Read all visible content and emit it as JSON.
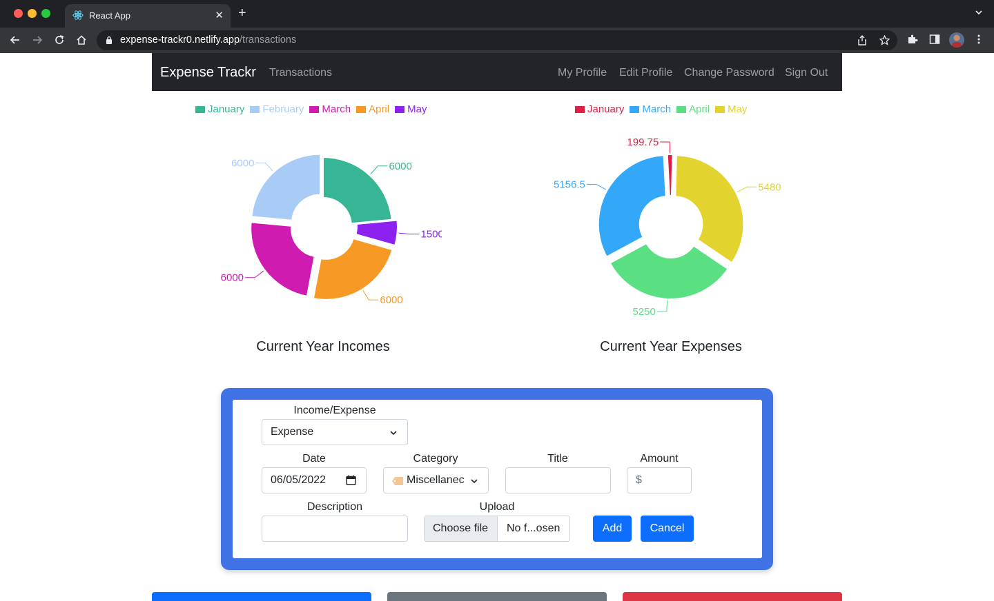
{
  "browser": {
    "tab_title": "React App",
    "url_host": "expense-trackr0.netlify.app",
    "url_path": "/transactions"
  },
  "navbar": {
    "brand": "Expense Trackr",
    "transactions_link": "Transactions",
    "my_profile_link": "My Profile",
    "edit_profile_link": "Edit Profile",
    "change_password_link": "Change Password",
    "sign_out_link": "Sign Out"
  },
  "chart_data": [
    {
      "type": "pie",
      "title": "Current Year Incomes",
      "categories": [
        "January",
        "February",
        "March",
        "April",
        "May"
      ],
      "values": [
        6000,
        6000,
        6000,
        6000,
        1500
      ],
      "value_labels": [
        "6000",
        "6000",
        "6000",
        "6000",
        "1500"
      ],
      "colors": [
        "#36b694",
        "#a9ccf7",
        "#d01bb0",
        "#f79a25",
        "#8c21f0"
      ],
      "donut": true,
      "legend_position": "top"
    },
    {
      "type": "pie",
      "title": "Current Year Expenses",
      "categories": [
        "January",
        "March",
        "April",
        "May"
      ],
      "values": [
        199.75,
        5156.5,
        5250,
        5480
      ],
      "value_labels": [
        "199.75",
        "5156.5",
        "5250",
        "5480"
      ],
      "colors": [
        "#dc1f45",
        "#34a8f8",
        "#5ae083",
        "#e2d32e"
      ],
      "donut": true,
      "legend_position": "top"
    }
  ],
  "form": {
    "type_label": "Income/Expense",
    "type_value": "Expense",
    "date_label": "Date",
    "date_value": "06/05/2022",
    "category_label": "Category",
    "category_value": "Miscellanec",
    "title_label": "Title",
    "title_value": "",
    "amount_label": "Amount",
    "amount_prefix": "$",
    "description_label": "Description",
    "description_value": "",
    "upload_label": "Upload",
    "choose_file": "Choose file",
    "no_file": "No f...osen",
    "add_button": "Add",
    "cancel_button": "Cancel"
  },
  "colors": {
    "card_border": "#3f73e5",
    "primary": "#0d6efd",
    "navbar_bg": "#212529",
    "bottom_blue": "#0d6efd",
    "bottom_gray": "#6c757d",
    "bottom_red": "#dc3545"
  }
}
